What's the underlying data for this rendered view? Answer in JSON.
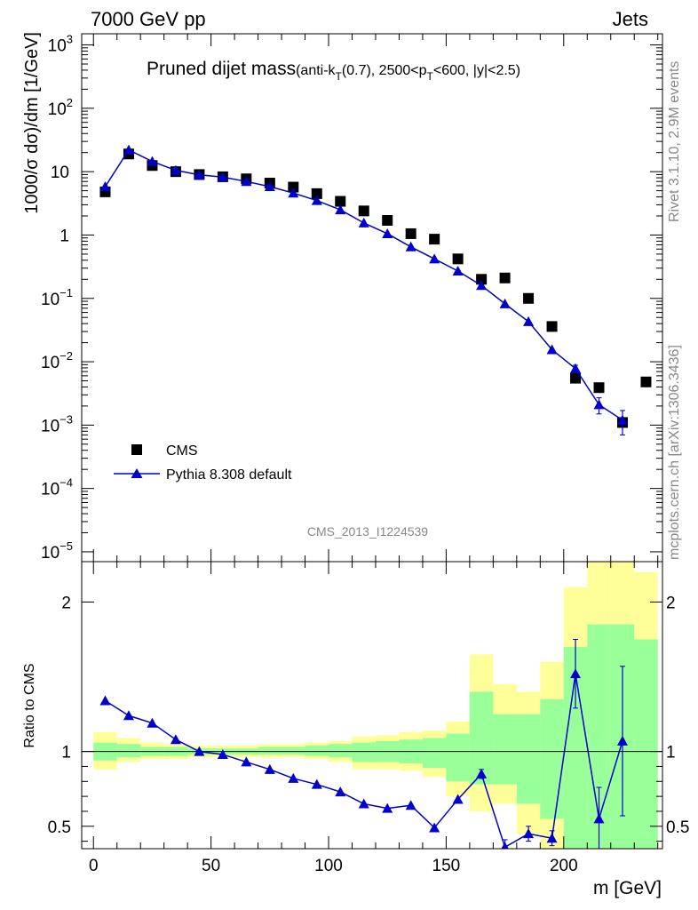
{
  "header": {
    "left": "7000 GeV pp",
    "right": "Jets"
  },
  "side_texts": {
    "rivet": "Rivet 3.1.10,  2.9M events",
    "mcplots": "mcplots.cern.ch [arXiv:1306.3436]"
  },
  "chart_data": [
    {
      "type": "scatter",
      "panel": "main",
      "title_main": "Pruned dijet mass",
      "title_sub_a": "(anti-k",
      "title_sub_b": "T",
      "title_sub_c": "(0.7), 2500<p",
      "title_sub_d": "T",
      "title_sub_e": "<600, |y|<2.5)",
      "ylabel": "1000/σ dσ)/dm [1/GeV]",
      "watermark": "CMS_2013_I1224539",
      "yscale": "log",
      "xlim": [
        -5,
        242
      ],
      "ylim": [
        7e-06,
        1500.0
      ],
      "yticks": [
        {
          "base": "10",
          "exp": "3",
          "value": 1000
        },
        {
          "base": "10",
          "exp": "2",
          "value": 100
        },
        {
          "base": "10",
          "exp": "",
          "value": 10
        },
        {
          "base": "1",
          "exp": "",
          "value": 1
        },
        {
          "base": "10",
          "exp": "−1",
          "value": 0.1
        },
        {
          "base": "10",
          "exp": "−2",
          "value": 0.01
        },
        {
          "base": "10",
          "exp": "−3",
          "value": 0.001
        },
        {
          "base": "10",
          "exp": "−4",
          "value": 0.0001
        },
        {
          "base": "10",
          "exp": "−5",
          "value": 1e-05
        }
      ],
      "legend_position": "bottom-left",
      "series": [
        {
          "name": "CMS",
          "marker": "square",
          "color": "#000000",
          "x": [
            5,
            15,
            25,
            35,
            45,
            55,
            65,
            75,
            85,
            95,
            105,
            115,
            125,
            135,
            145,
            155,
            165,
            175,
            185,
            195,
            205,
            215,
            225,
            235
          ],
          "y": [
            4.8,
            19,
            12.5,
            10,
            9,
            8.3,
            7.7,
            6.6,
            5.7,
            4.5,
            3.4,
            2.4,
            1.7,
            1.05,
            0.86,
            0.42,
            0.2,
            0.21,
            0.1,
            0.036,
            0.0055,
            0.0039,
            0.0011,
            0.0048
          ]
        },
        {
          "name": "Pythia 8.308 default",
          "marker": "triangle",
          "color": "#0000cc",
          "x": [
            5,
            15,
            25,
            35,
            45,
            55,
            65,
            75,
            85,
            95,
            105,
            115,
            125,
            135,
            145,
            155,
            165,
            175,
            185,
            195,
            205,
            215,
            225
          ],
          "y": [
            5.8,
            22,
            14.5,
            10.5,
            8.9,
            8.2,
            7.0,
            5.8,
            4.6,
            3.5,
            2.5,
            1.55,
            1.05,
            0.65,
            0.42,
            0.27,
            0.16,
            0.082,
            0.043,
            0.0155,
            0.0078,
            0.0021,
            0.0012
          ],
          "yerr": [
            0,
            0,
            0,
            0,
            0,
            0,
            0,
            0,
            0,
            0,
            0,
            0,
            0,
            0,
            0,
            0,
            0,
            0,
            0,
            0,
            0.001,
            0.0006,
            0.0005
          ]
        }
      ]
    },
    {
      "type": "line",
      "panel": "ratio",
      "ylabel": "Ratio to CMS",
      "xlabel": "m [GeV]",
      "xlim": [
        -5,
        242
      ],
      "ylim": [
        0.35,
        2.27
      ],
      "xticks": [
        0,
        50,
        100,
        150,
        200
      ],
      "yticks": [
        0.5,
        1,
        2
      ],
      "reference": 1,
      "bands": {
        "bin_edges": [
          0,
          10,
          20,
          30,
          40,
          50,
          60,
          70,
          80,
          90,
          100,
          110,
          120,
          130,
          140,
          150,
          160,
          170,
          180,
          190,
          200,
          210,
          220,
          230,
          240
        ],
        "yellow_lo": [
          0.88,
          0.93,
          0.95,
          0.95,
          0.96,
          0.96,
          0.96,
          0.96,
          0.96,
          0.95,
          0.93,
          0.88,
          0.88,
          0.87,
          0.83,
          0.7,
          0.6,
          0.65,
          0.45,
          0.35,
          0.35,
          0.35,
          0.35,
          0.35
        ],
        "yellow_hi": [
          1.13,
          1.09,
          1.06,
          1.05,
          1.04,
          1.04,
          1.04,
          1.05,
          1.05,
          1.06,
          1.07,
          1.1,
          1.11,
          1.13,
          1.14,
          1.2,
          1.65,
          1.45,
          1.4,
          1.6,
          2.1,
          2.27,
          2.27,
          2.2
        ],
        "green_lo": [
          0.94,
          0.96,
          0.97,
          0.97,
          0.98,
          0.98,
          0.98,
          0.98,
          0.98,
          0.97,
          0.96,
          0.93,
          0.93,
          0.92,
          0.89,
          0.8,
          0.78,
          0.78,
          0.65,
          0.55,
          0.35,
          0.35,
          0.35,
          0.35
        ],
        "green_hi": [
          1.06,
          1.05,
          1.03,
          1.03,
          1.02,
          1.02,
          1.02,
          1.03,
          1.03,
          1.04,
          1.05,
          1.06,
          1.07,
          1.08,
          1.09,
          1.12,
          1.4,
          1.25,
          1.25,
          1.35,
          1.7,
          1.85,
          1.85,
          1.75
        ]
      },
      "series": [
        {
          "name": "Pythia 8.308 default",
          "color": "#0000cc",
          "x": [
            5,
            15,
            25,
            35,
            45,
            55,
            65,
            75,
            85,
            95,
            105,
            115,
            125,
            135,
            145,
            155,
            165,
            175,
            185,
            195,
            205,
            215,
            225
          ],
          "y": [
            1.34,
            1.24,
            1.19,
            1.08,
            1.0,
            0.98,
            0.93,
            0.88,
            0.82,
            0.78,
            0.73,
            0.65,
            0.62,
            0.64,
            0.49,
            0.68,
            0.85,
            0.36,
            0.45,
            0.42,
            1.52,
            0.55,
            1.07
          ],
          "yerr": [
            0,
            0,
            0,
            0,
            0,
            0,
            0,
            0,
            0,
            0,
            0,
            0,
            0,
            0,
            0,
            0,
            0.03,
            0.05,
            0.05,
            0.05,
            0.23,
            0.21,
            0.5
          ]
        }
      ]
    }
  ]
}
